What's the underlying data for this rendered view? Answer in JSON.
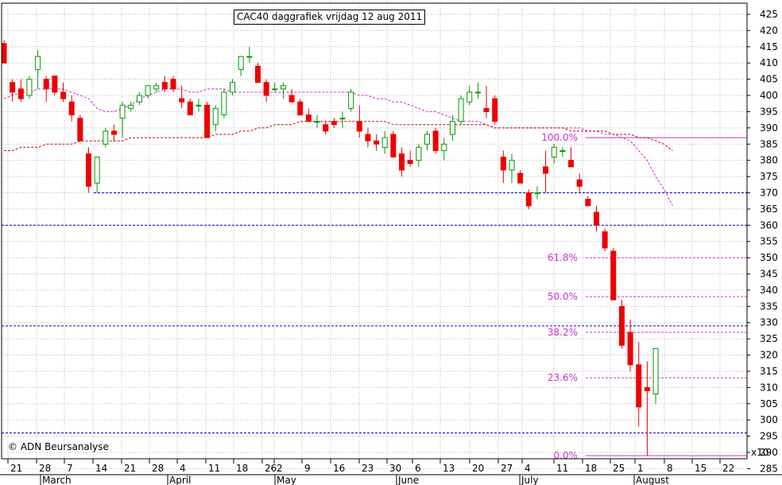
{
  "chart_data": {
    "type": "candlestick",
    "title": "CAC40 daggrafiek vrijdag 12 aug 2011",
    "copyright": "© ADN Beursanalyse",
    "y_axis": {
      "min": 280,
      "max": 427,
      "position": "right",
      "ticks": [
        285,
        290,
        295,
        300,
        305,
        310,
        315,
        320,
        325,
        330,
        335,
        340,
        345,
        350,
        355,
        360,
        365,
        370,
        375,
        380,
        385,
        390,
        395,
        400,
        405,
        410,
        415,
        420,
        425
      ],
      "scale_note": "x10"
    },
    "x_axis": {
      "day_labels": [
        "21",
        "28",
        "7",
        "14",
        "21",
        "28",
        "4",
        "11",
        "18",
        "26",
        "2",
        "9",
        "16",
        "23",
        "30",
        "6",
        "13",
        "20",
        "27",
        "4",
        "11",
        "18",
        "25",
        "1",
        "8",
        "15",
        "22"
      ],
      "month_labels": [
        "March",
        "April",
        "May",
        "June",
        "July",
        "August"
      ]
    },
    "horizontal_lines": [
      {
        "value": 370,
        "style": "dashed",
        "color": "#0000cc"
      },
      {
        "value": 360,
        "style": "dashed",
        "color": "#0000cc"
      },
      {
        "value": 329,
        "style": "dashed",
        "color": "#0000cc"
      },
      {
        "value": 296,
        "style": "dashed",
        "color": "#0000cc"
      }
    ],
    "fibonacci": [
      {
        "label": "100.0%",
        "value": 387,
        "style": "solid"
      },
      {
        "label": "61.8%",
        "value": 350,
        "style": "dashed"
      },
      {
        "label": "50.0%",
        "value": 338,
        "style": "dashed"
      },
      {
        "label": "38.2%",
        "value": 327,
        "style": "dashed"
      },
      {
        "label": "23.6%",
        "value": 313,
        "style": "dashed"
      },
      {
        "label": "0.0%",
        "value": 289,
        "style": "solid"
      }
    ],
    "colors": {
      "up": "#009900",
      "down": "#ee0000",
      "fib": "#cc33cc",
      "support": "#0000cc",
      "ma_short": "#dd22dd",
      "ma_long": "#cc0000",
      "grid": "#bbbbbb"
    },
    "moving_averages": [
      {
        "color": "#dd22dd",
        "values": [
          399,
          400,
          401,
          401,
          402,
          402,
          402,
          402,
          401,
          400,
          399,
          396,
          395,
          395,
          396,
          397,
          399,
          400,
          401,
          402,
          402,
          402,
          401,
          401,
          402,
          402,
          402,
          401,
          401,
          401,
          401,
          401,
          401,
          401,
          401,
          401,
          401,
          401,
          401,
          401,
          401,
          401,
          400,
          400,
          399,
          399,
          398,
          398,
          397,
          396,
          395,
          395,
          394,
          393,
          392,
          392,
          392,
          391,
          390,
          390,
          390,
          390,
          390,
          390,
          390,
          390,
          390,
          390,
          390,
          389,
          389,
          388,
          388,
          387,
          386,
          383,
          380,
          375,
          371,
          366
        ]
      },
      {
        "color": "#cc0000",
        "values": [
          383,
          383,
          384,
          384,
          384,
          385,
          385,
          385,
          385,
          386,
          386,
          386,
          386,
          386,
          386,
          387,
          387,
          387,
          387,
          387,
          387,
          387,
          387,
          387,
          387,
          388,
          388,
          388,
          389,
          389,
          390,
          390,
          391,
          391,
          391,
          392,
          392,
          392,
          392,
          392,
          392,
          392,
          392,
          392,
          392,
          392,
          391,
          391,
          391,
          391,
          391,
          391,
          391,
          391,
          391,
          391,
          391,
          391,
          390,
          390,
          390,
          390,
          390,
          390,
          390,
          390,
          390,
          389,
          389,
          389,
          389,
          389,
          388,
          388,
          388,
          387,
          387,
          386,
          385,
          383
        ]
      }
    ],
    "candles": [
      {
        "o": 416,
        "h": 417,
        "l": 410,
        "c": 410
      },
      {
        "o": 404,
        "h": 405,
        "l": 398,
        "c": 401
      },
      {
        "o": 402,
        "h": 405,
        "l": 398,
        "c": 399
      },
      {
        "o": 400,
        "h": 406,
        "l": 399,
        "c": 405
      },
      {
        "o": 408,
        "h": 414,
        "l": 402,
        "c": 412
      },
      {
        "o": 405,
        "h": 406,
        "l": 398,
        "c": 402
      },
      {
        "o": 406,
        "h": 406,
        "l": 400,
        "c": 401
      },
      {
        "o": 401,
        "h": 404,
        "l": 398,
        "c": 399
      },
      {
        "o": 398,
        "h": 400,
        "l": 392,
        "c": 394
      },
      {
        "o": 393,
        "h": 394,
        "l": 386,
        "c": 386
      },
      {
        "o": 382,
        "h": 384,
        "l": 370,
        "c": 372
      },
      {
        "o": 373,
        "h": 381,
        "l": 370,
        "c": 381
      },
      {
        "o": 385,
        "h": 390,
        "l": 384,
        "c": 389
      },
      {
        "o": 389,
        "h": 391,
        "l": 386,
        "c": 388
      },
      {
        "o": 393,
        "h": 398,
        "l": 387,
        "c": 397
      },
      {
        "o": 396,
        "h": 398,
        "l": 395,
        "c": 397
      },
      {
        "o": 398,
        "h": 401,
        "l": 397,
        "c": 400
      },
      {
        "o": 400,
        "h": 403,
        "l": 399,
        "c": 403
      },
      {
        "o": 402,
        "h": 404,
        "l": 401,
        "c": 403
      },
      {
        "o": 404,
        "h": 406,
        "l": 401,
        "c": 402
      },
      {
        "o": 405,
        "h": 406,
        "l": 401,
        "c": 402
      },
      {
        "o": 399,
        "h": 403,
        "l": 396,
        "c": 398
      },
      {
        "o": 398,
        "h": 399,
        "l": 394,
        "c": 394
      },
      {
        "o": 397,
        "h": 399,
        "l": 395,
        "c": 397
      },
      {
        "o": 397,
        "h": 398,
        "l": 387,
        "c": 387
      },
      {
        "o": 391,
        "h": 397,
        "l": 389,
        "c": 396
      },
      {
        "o": 394,
        "h": 402,
        "l": 393,
        "c": 401
      },
      {
        "o": 401,
        "h": 405,
        "l": 400,
        "c": 404
      },
      {
        "o": 408,
        "h": 412,
        "l": 406,
        "c": 412
      },
      {
        "o": 412,
        "h": 415,
        "l": 410,
        "c": 412
      },
      {
        "o": 409,
        "h": 410,
        "l": 404,
        "c": 404
      },
      {
        "o": 404,
        "h": 405,
        "l": 398,
        "c": 400
      },
      {
        "o": 402,
        "h": 404,
        "l": 401,
        "c": 402
      },
      {
        "o": 402,
        "h": 404,
        "l": 399,
        "c": 403
      },
      {
        "o": 400,
        "h": 402,
        "l": 398,
        "c": 398
      },
      {
        "o": 398,
        "h": 399,
        "l": 394,
        "c": 394
      },
      {
        "o": 394,
        "h": 396,
        "l": 392,
        "c": 392
      },
      {
        "o": 392,
        "h": 394,
        "l": 390,
        "c": 392
      },
      {
        "o": 391,
        "h": 392,
        "l": 388,
        "c": 389
      },
      {
        "o": 392,
        "h": 393,
        "l": 390,
        "c": 391
      },
      {
        "o": 393,
        "h": 395,
        "l": 390,
        "c": 393
      },
      {
        "o": 396,
        "h": 402,
        "l": 395,
        "c": 401
      },
      {
        "o": 392,
        "h": 397,
        "l": 387,
        "c": 389
      },
      {
        "o": 388,
        "h": 390,
        "l": 384,
        "c": 386
      },
      {
        "o": 386,
        "h": 388,
        "l": 383,
        "c": 385
      },
      {
        "o": 384,
        "h": 389,
        "l": 382,
        "c": 387
      },
      {
        "o": 388,
        "h": 389,
        "l": 381,
        "c": 381
      },
      {
        "o": 382,
        "h": 384,
        "l": 375,
        "c": 377
      },
      {
        "o": 380,
        "h": 383,
        "l": 378,
        "c": 379
      },
      {
        "o": 380,
        "h": 385,
        "l": 378,
        "c": 384
      },
      {
        "o": 385,
        "h": 389,
        "l": 383,
        "c": 388
      },
      {
        "o": 389,
        "h": 390,
        "l": 382,
        "c": 383
      },
      {
        "o": 383,
        "h": 387,
        "l": 380,
        "c": 385
      },
      {
        "o": 388,
        "h": 394,
        "l": 386,
        "c": 392
      },
      {
        "o": 392,
        "h": 400,
        "l": 391,
        "c": 399
      },
      {
        "o": 398,
        "h": 403,
        "l": 397,
        "c": 401
      },
      {
        "o": 401,
        "h": 404,
        "l": 399,
        "c": 401
      },
      {
        "o": 396,
        "h": 403,
        "l": 393,
        "c": 395
      },
      {
        "o": 399,
        "h": 400,
        "l": 391,
        "c": 392
      },
      {
        "o": 381,
        "h": 383,
        "l": 373,
        "c": 377
      },
      {
        "o": 377,
        "h": 382,
        "l": 373,
        "c": 380
      },
      {
        "o": 376,
        "h": 377,
        "l": 373,
        "c": 373
      },
      {
        "o": 370,
        "h": 371,
        "l": 365,
        "c": 366
      },
      {
        "o": 370,
        "h": 372,
        "l": 368,
        "c": 370
      },
      {
        "o": 378,
        "h": 383,
        "l": 370,
        "c": 376
      },
      {
        "o": 381,
        "h": 385,
        "l": 379,
        "c": 384
      },
      {
        "o": 383,
        "h": 384,
        "l": 381,
        "c": 383
      },
      {
        "o": 380,
        "h": 384,
        "l": 378,
        "c": 378
      },
      {
        "o": 374,
        "h": 376,
        "l": 370,
        "c": 372
      },
      {
        "o": 368,
        "h": 369,
        "l": 366,
        "c": 366
      },
      {
        "o": 364,
        "h": 366,
        "l": 358,
        "c": 360
      },
      {
        "o": 358,
        "h": 359,
        "l": 352,
        "c": 353
      },
      {
        "o": 352,
        "h": 353,
        "l": 337,
        "c": 337
      },
      {
        "o": 335,
        "h": 337,
        "l": 322,
        "c": 323
      },
      {
        "o": 327,
        "h": 331,
        "l": 315,
        "c": 317
      },
      {
        "o": 317,
        "h": 324,
        "l": 298,
        "c": 304
      },
      {
        "o": 310,
        "h": 318,
        "l": 289,
        "c": 309
      },
      {
        "o": 308,
        "h": 322,
        "l": 305,
        "c": 322
      }
    ]
  }
}
